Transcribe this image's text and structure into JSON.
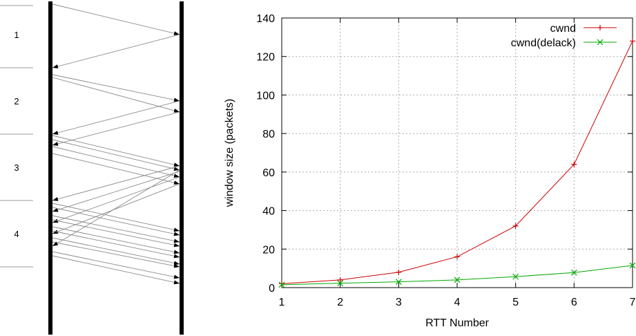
{
  "seq": {
    "rtt_labels": [
      "1",
      "2",
      "3",
      "4"
    ]
  },
  "chart_data": {
    "type": "line",
    "x": [
      1,
      2,
      3,
      4,
      5,
      6,
      7
    ],
    "xlabel": "RTT Number",
    "ylabel": "window size (packets)",
    "xlim": [
      1,
      7
    ],
    "ylim": [
      0,
      140
    ],
    "xticks": [
      1,
      2,
      3,
      4,
      5,
      6,
      7
    ],
    "yticks": [
      0,
      20,
      40,
      60,
      80,
      100,
      120,
      140
    ],
    "grid": true,
    "legend_position": "top-right",
    "series": [
      {
        "name": "cwnd",
        "color": "#cc0000",
        "marker": "plus",
        "values": [
          2,
          4,
          8,
          16,
          32,
          64,
          128
        ]
      },
      {
        "name": "cwnd(delack)",
        "color": "#00aa00",
        "marker": "x",
        "values": [
          1.5,
          2.3,
          3.0,
          4.0,
          5.7,
          7.8,
          11.5
        ]
      }
    ]
  }
}
